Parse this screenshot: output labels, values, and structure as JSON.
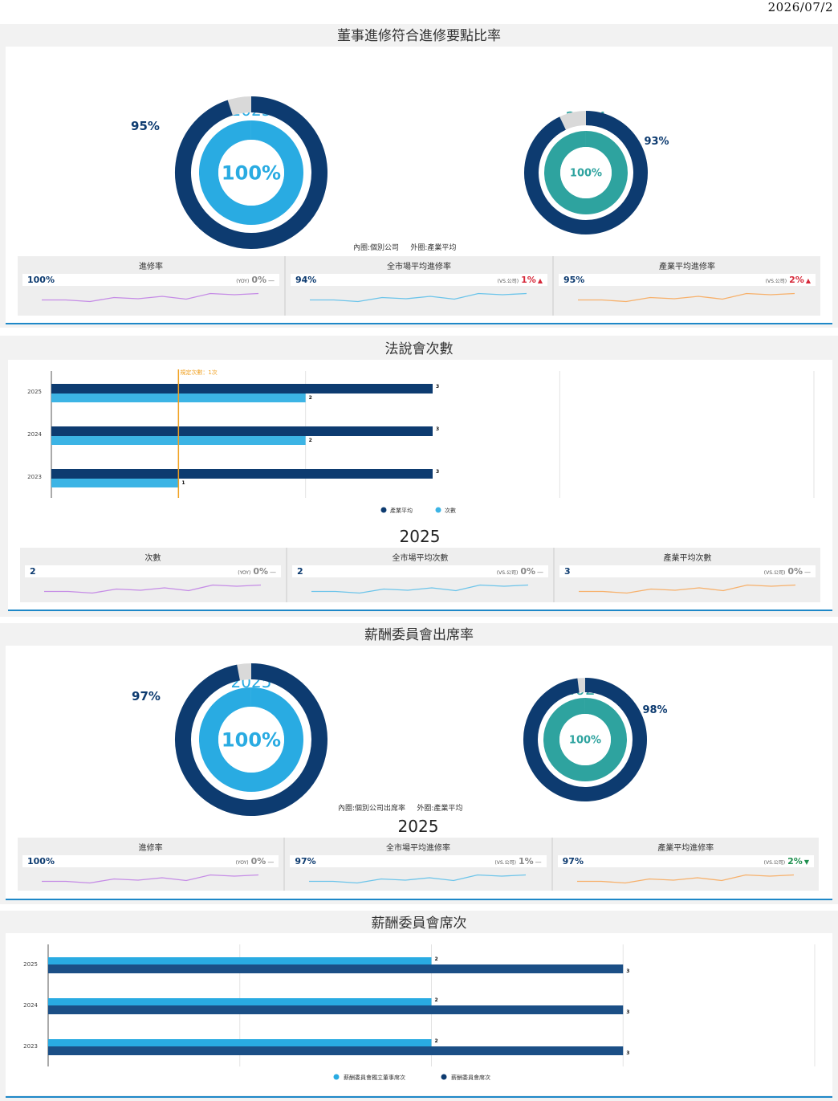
{
  "date": "2026/07/2",
  "colors": {
    "navy": "#0d3b70",
    "light": "#29abe2",
    "teal": "#2ea39f",
    "orange": "#f0a020",
    "purple": "#c58be6",
    "sky": "#6bc4ea",
    "peach": "#f7b06a",
    "up": "#d62839",
    "down": "#1e8f4e"
  },
  "sections": {
    "s1": {
      "title": "董事進修符合進修要點比率",
      "left_year": "2025",
      "left_inner": "100%",
      "left_outer": "95%",
      "right_year": "2024",
      "right_inner": "100%",
      "right_outer": "93%",
      "note_inner": "內圈:個別公司",
      "note_outer": "外圈:產業平均",
      "stat_year": "2025",
      "stats": [
        {
          "title": "進修率",
          "value": "100%",
          "cmp_label": "(YOY)",
          "cmp_pct": "0%",
          "dir": "flat"
        },
        {
          "title": "全市場平均進修率",
          "value": "94%",
          "cmp_label": "(VS.公司)",
          "cmp_pct": "1%",
          "dir": "up"
        },
        {
          "title": "產業平均進修率",
          "value": "95%",
          "cmp_label": "(VS.公司)",
          "cmp_pct": "2%",
          "dir": "up"
        }
      ]
    },
    "s2": {
      "title": "法說會次數",
      "stat_year": "2025",
      "stats": [
        {
          "title": "次數",
          "value": "2",
          "cmp_label": "(YOY)",
          "cmp_pct": "0%",
          "dir": "flat"
        },
        {
          "title": "全市場平均次數",
          "value": "2",
          "cmp_label": "(VS.公司)",
          "cmp_pct": "0%",
          "dir": "flat"
        },
        {
          "title": "產業平均次數",
          "value": "3",
          "cmp_label": "(VS.公司)",
          "cmp_pct": "0%",
          "dir": "flat"
        }
      ]
    },
    "s3": {
      "title": "薪酬委員會出席率",
      "left_year": "2025",
      "left_inner": "100%",
      "left_outer": "97%",
      "right_year": "2024",
      "right_inner": "100%",
      "right_outer": "98%",
      "note_inner": "內圈:個別公司出席率",
      "note_outer": "外圈:產業平均",
      "stat_year": "2025",
      "stats": [
        {
          "title": "進修率",
          "value": "100%",
          "cmp_label": "(YOY)",
          "cmp_pct": "0%",
          "dir": "flat"
        },
        {
          "title": "全市場平均進修率",
          "value": "97%",
          "cmp_label": "(VS.公司)",
          "cmp_pct": "1%",
          "dir": "flat"
        },
        {
          "title": "產業平均進修率",
          "value": "97%",
          "cmp_label": "(VS.公司)",
          "cmp_pct": "2%",
          "dir": "down"
        }
      ]
    },
    "s4": {
      "title": "薪酬委員會席次"
    }
  },
  "chart_data": [
    {
      "type": "pie",
      "title": "董事進修符合進修要點比率",
      "year": "2025",
      "series": [
        {
          "name": "內圈:個別公司",
          "values": [
            100
          ]
        },
        {
          "name": "外圈:產業平均",
          "values": [
            95
          ]
        }
      ]
    },
    {
      "type": "pie",
      "title": "董事進修符合進修要點比率",
      "year": "2024",
      "series": [
        {
          "name": "內圈:個別公司",
          "values": [
            100
          ]
        },
        {
          "name": "外圈:產業平均",
          "values": [
            93
          ]
        }
      ]
    },
    {
      "type": "bar",
      "orientation": "horizontal",
      "title": "法說會次數",
      "categories": [
        "2025",
        "2024",
        "2023"
      ],
      "series": [
        {
          "name": "產業平均",
          "values": [
            3,
            3,
            3
          ]
        },
        {
          "name": "次數",
          "values": [
            2,
            2,
            1
          ]
        }
      ],
      "reference_line": {
        "label": "規定次數：1次",
        "value": 1
      },
      "xlim": [
        0,
        6
      ]
    },
    {
      "type": "pie",
      "title": "薪酬委員會出席率",
      "year": "2025",
      "series": [
        {
          "name": "內圈:個別公司出席率",
          "values": [
            100
          ]
        },
        {
          "name": "外圈:產業平均",
          "values": [
            97
          ]
        }
      ]
    },
    {
      "type": "pie",
      "title": "薪酬委員會出席率",
      "year": "2024",
      "series": [
        {
          "name": "內圈:個別公司出席率",
          "values": [
            100
          ]
        },
        {
          "name": "外圈:產業平均",
          "values": [
            98
          ]
        }
      ]
    },
    {
      "type": "bar",
      "orientation": "horizontal",
      "title": "薪酬委員會席次",
      "categories": [
        "2025",
        "2024",
        "2023"
      ],
      "series": [
        {
          "name": "薪酬委員會獨立董事席次",
          "values": [
            2,
            2,
            2
          ]
        },
        {
          "name": "薪酬委員會席次",
          "values": [
            3,
            3,
            3
          ]
        }
      ],
      "xlim": [
        0,
        4
      ]
    }
  ]
}
